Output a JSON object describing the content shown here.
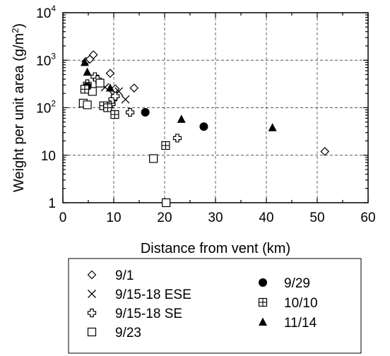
{
  "chart_data": {
    "type": "scatter",
    "title": "",
    "xlabel": "Distance from vent (km)",
    "ylabel": "Weight per unit area (g/m²)",
    "ylabel_parts": {
      "before": "Weight per unit area (g/m",
      "sup": "2",
      "after": ")"
    },
    "xlim": [
      0,
      60
    ],
    "ylim": [
      1,
      10000
    ],
    "yscale": "log",
    "grid": "dashed",
    "legend_position": "bottom",
    "x_ticks": [
      {
        "value": 0,
        "label": "0"
      },
      {
        "value": 10,
        "label": "10"
      },
      {
        "value": 20,
        "label": "20"
      },
      {
        "value": 30,
        "label": "30"
      },
      {
        "value": 40,
        "label": "40"
      },
      {
        "value": 50,
        "label": "50"
      },
      {
        "value": 60,
        "label": "60"
      }
    ],
    "y_ticks": [
      {
        "value": 1,
        "base": "1",
        "exp": ""
      },
      {
        "value": 10,
        "base": "10",
        "exp": ""
      },
      {
        "value": 100,
        "base": "10",
        "exp": "2"
      },
      {
        "value": 1000,
        "base": "10",
        "exp": "3"
      },
      {
        "value": 10000,
        "base": "10",
        "exp": "4"
      }
    ],
    "series": [
      {
        "name": "9/1",
        "marker": "diamond-open",
        "points": [
          [
            4.5,
            940
          ],
          [
            5.3,
            1050
          ],
          [
            6.0,
            1300
          ],
          [
            9.3,
            530
          ],
          [
            10.3,
            250
          ],
          [
            14.0,
            260
          ],
          [
            51.5,
            12
          ]
        ]
      },
      {
        "name": "9/15-18 ESE",
        "marker": "x",
        "points": [
          [
            8.3,
            270
          ],
          [
            10.0,
            180
          ],
          [
            11.0,
            220
          ],
          [
            12.3,
            150
          ]
        ]
      },
      {
        "name": "9/15-18 SE",
        "marker": "cross-open",
        "points": [
          [
            4.8,
            320
          ],
          [
            6.3,
            450
          ],
          [
            6.8,
            390
          ],
          [
            9.5,
            120
          ],
          [
            9.8,
            150
          ],
          [
            10.3,
            175
          ],
          [
            13.2,
            80
          ],
          [
            22.5,
            23
          ]
        ]
      },
      {
        "name": "9/23",
        "marker": "square-open",
        "points": [
          [
            4.0,
            125
          ],
          [
            4.8,
            115
          ],
          [
            5.8,
            220
          ],
          [
            7.3,
            330
          ],
          [
            17.8,
            8.5
          ],
          [
            20.3,
            1
          ]
        ]
      },
      {
        "name": "9/29",
        "marker": "circle-filled",
        "points": [
          [
            4.8,
            280
          ],
          [
            16.2,
            80
          ],
          [
            27.7,
            40
          ]
        ]
      },
      {
        "name": "10/10",
        "marker": "square-plus",
        "points": [
          [
            4.3,
            245
          ],
          [
            8.0,
            110
          ],
          [
            8.8,
            100
          ],
          [
            10.2,
            72
          ],
          [
            20.2,
            16
          ]
        ]
      },
      {
        "name": "11/14",
        "marker": "triangle-filled",
        "points": [
          [
            4.3,
            900
          ],
          [
            4.8,
            560
          ],
          [
            9.3,
            260
          ],
          [
            23.3,
            57
          ],
          [
            41.2,
            38
          ]
        ]
      }
    ],
    "legend": {
      "left_column": [
        "9/1",
        "9/15-18 ESE",
        "9/15-18 SE",
        "9/23"
      ],
      "right_column": [
        "9/29",
        "10/10",
        "11/14"
      ]
    }
  }
}
